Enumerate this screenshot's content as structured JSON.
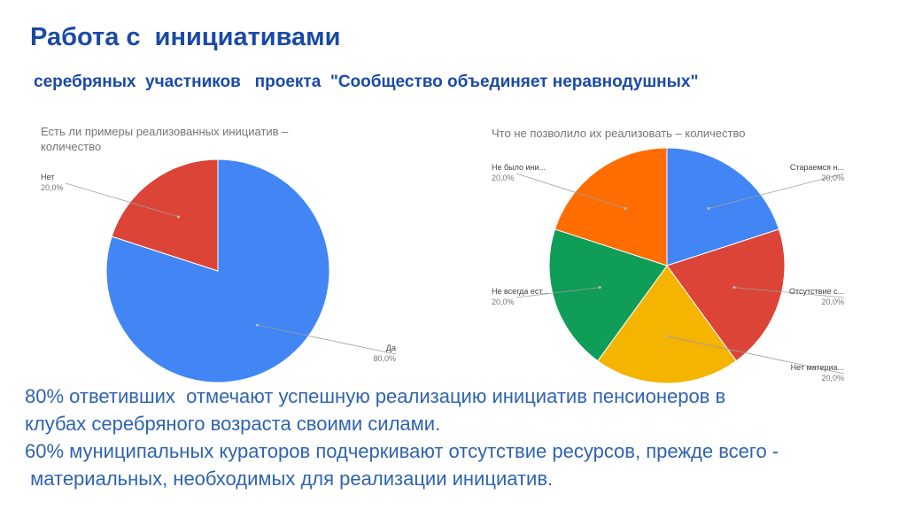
{
  "header": {
    "title": "Работа с  инициативами",
    "subtitle": "серебряных  участников   проекта  \"Сообщество объединяет неравнодушных\""
  },
  "chart_data": [
    {
      "type": "pie",
      "title": "Есть ли примеры реализованных инициатив – количество",
      "slices": [
        {
          "label": "Да",
          "value": 80,
          "value_label": "80,0%",
          "color": "#4285f4"
        },
        {
          "label": "Нет",
          "value": 20,
          "value_label": "20,0%",
          "color": "#db4437"
        }
      ]
    },
    {
      "type": "pie",
      "title": "Что не позволило их реализовать – количество",
      "slices": [
        {
          "label": "Стараемся н...",
          "value": 20,
          "value_label": "20,0%",
          "color": "#4285f4"
        },
        {
          "label": "Отсутствие с...",
          "value": 20,
          "value_label": "20,0%",
          "color": "#db4437"
        },
        {
          "label": "Нет материа...",
          "value": 20,
          "value_label": "20,0%",
          "color": "#f4b400"
        },
        {
          "label": "Не всегда ест...",
          "value": 20,
          "value_label": "20,0%",
          "color": "#0f9d58"
        },
        {
          "label": "Не было ини...",
          "value": 20,
          "value_label": "20,0%",
          "color": "#ff6d00"
        }
      ]
    }
  ],
  "summary": [
    "80% ответивших  отмечают успешную реализацию инициатив пенсионеров в",
    "клубах серебряного возраста своими силами.",
    "60% муниципальных кураторов подчеркивают отсутствие ресурсов, прежде всего -",
    " материальных, необходимых для реализации инициатив."
  ]
}
